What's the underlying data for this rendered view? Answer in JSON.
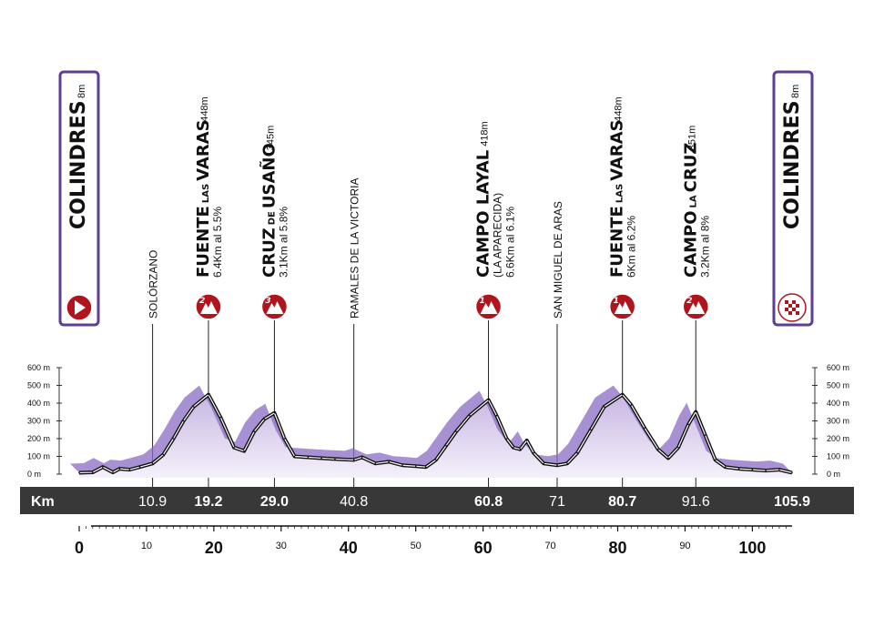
{
  "start": {
    "name": "COLINDRES",
    "alt": "8m",
    "km": 0
  },
  "finish": {
    "name": "COLINDRES",
    "alt": "8m",
    "km": 105.9
  },
  "km_bar": {
    "label": "Km",
    "values": [
      "10.9",
      "19.2",
      "29.0",
      "40.8",
      "60.8",
      "71",
      "80.7",
      "91.6",
      "105.9"
    ]
  },
  "waypoints": [
    {
      "km": 10.9,
      "text": "SOLÓRZANO"
    },
    {
      "km": 40.8,
      "text": "RAMALES DE LA VICTORIA"
    },
    {
      "km": 71,
      "text": "SAN MIGUEL DE ARAS"
    }
  ],
  "climbs": [
    {
      "km": 19.2,
      "name_big1": "FUENTE",
      "name_small": "LAS",
      "name_big2": "VARAS",
      "alt": "448m",
      "detail": "6.4Km al 5.5%",
      "extra": "",
      "category": "2"
    },
    {
      "km": 29.0,
      "name_big1": "CRUZ",
      "name_small": "DE",
      "name_big2": "USAÑO",
      "alt": "345m",
      "detail": "3.1Km al 5.8%",
      "extra": "",
      "category": "3"
    },
    {
      "km": 60.8,
      "name_big1": "CAMPO LAYAL",
      "name_small": "",
      "name_big2": "",
      "alt": "418m",
      "detail": "6.6Km al 6.1%",
      "extra": "(LA APARECIDA)",
      "category": "1"
    },
    {
      "km": 80.7,
      "name_big1": "FUENTE",
      "name_small": "LAS",
      "name_big2": "VARAS",
      "alt": "448m",
      "detail": "6Km al 6.2%",
      "extra": "",
      "category": "1"
    },
    {
      "km": 91.6,
      "name_big1": "CAMPO",
      "name_small": "LA",
      "name_big2": "CRUZ",
      "alt": "351m",
      "detail": "3.2Km al 8%",
      "extra": "",
      "category": "2"
    }
  ],
  "y_axis_labels": [
    "600 m",
    "500 m",
    "400 m",
    "300 m",
    "200 m",
    "100 m",
    "0 m"
  ],
  "x_axis_ticks": [
    {
      "v": 0,
      "bold": true
    },
    {
      "v": 10,
      "bold": false
    },
    {
      "v": 20,
      "bold": true
    },
    {
      "v": 30,
      "bold": false
    },
    {
      "v": 40,
      "bold": true
    },
    {
      "v": 50,
      "bold": false
    },
    {
      "v": 60,
      "bold": true
    },
    {
      "v": 70,
      "bold": false
    },
    {
      "v": 80,
      "bold": true
    },
    {
      "v": 90,
      "bold": false
    },
    {
      "v": 100,
      "bold": true
    }
  ],
  "chart_data": {
    "type": "area",
    "xlabel": "Km",
    "ylabel": "",
    "xlim": [
      0,
      105.9
    ],
    "ylim": [
      0,
      600
    ],
    "x": [
      0,
      2,
      3.5,
      5,
      6,
      7.5,
      9,
      10.9,
      12.5,
      14,
      15.5,
      17,
      19.2,
      21,
      23,
      24.5,
      26,
      27.5,
      29.0,
      30.5,
      32,
      34,
      36,
      38,
      40.8,
      42,
      44,
      46,
      48,
      50,
      51.5,
      53,
      54.5,
      56,
      58,
      60.8,
      62,
      63.5,
      64.5,
      65.5,
      66.5,
      67.5,
      69,
      71,
      72.5,
      74,
      76,
      78,
      80.7,
      82,
      84,
      86,
      87.5,
      89,
      90.5,
      91.6,
      93,
      94.5,
      96,
      98,
      100,
      102,
      104,
      105.9
    ],
    "y": [
      8,
      10,
      40,
      10,
      30,
      25,
      40,
      60,
      110,
      200,
      300,
      380,
      448,
      320,
      150,
      130,
      240,
      310,
      345,
      200,
      100,
      95,
      90,
      85,
      80,
      95,
      60,
      70,
      50,
      45,
      40,
      80,
      160,
      240,
      330,
      418,
      330,
      200,
      150,
      140,
      190,
      120,
      60,
      50,
      60,
      120,
      250,
      380,
      448,
      390,
      260,
      140,
      90,
      150,
      280,
      351,
      220,
      80,
      40,
      30,
      25,
      20,
      25,
      8
    ]
  }
}
